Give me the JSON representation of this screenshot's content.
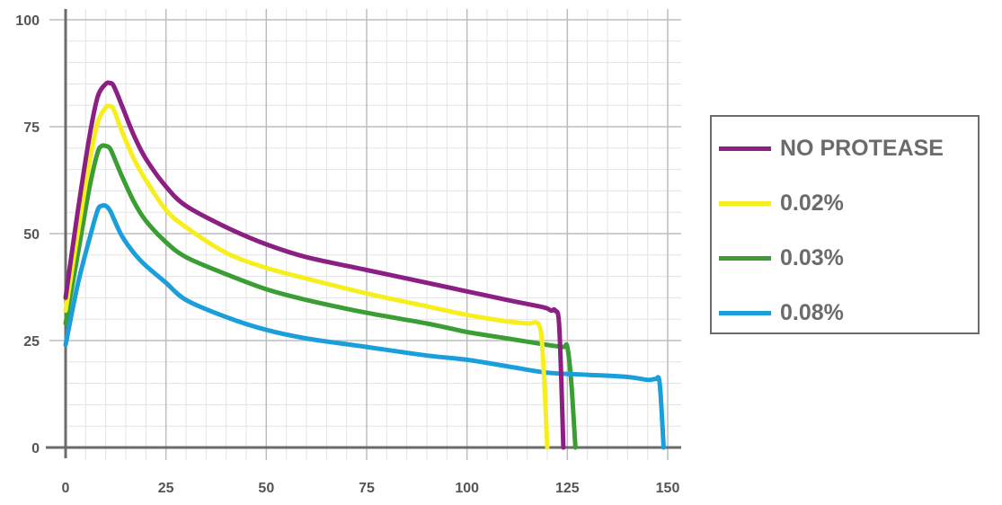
{
  "chart_data": {
    "type": "line",
    "title": "",
    "xlabel": "",
    "ylabel": "",
    "xlim": [
      0,
      150
    ],
    "ylim": [
      0,
      100
    ],
    "x_ticks": [
      "0",
      "25",
      "50",
      "75",
      "100",
      "125",
      "150"
    ],
    "y_ticks": [
      "0",
      "25",
      "50",
      "75",
      "100"
    ],
    "grid": true,
    "legend_position": "right",
    "series": [
      {
        "name": "NO PROTEASE",
        "color": "#8b1f84",
        "x": [
          0,
          3,
          6,
          8,
          10,
          11,
          12,
          14,
          17,
          20,
          25,
          30,
          40,
          50,
          60,
          75,
          90,
          100,
          110,
          118,
          120,
          121,
          122,
          123,
          124
        ],
        "y": [
          35,
          55,
          73,
          82,
          85,
          85.2,
          84.5,
          80,
          73,
          67.5,
          61,
          56.5,
          51.5,
          47.5,
          44.5,
          41.5,
          38.5,
          36.5,
          34.5,
          33,
          32.5,
          32,
          32,
          28,
          0
        ]
      },
      {
        "name": "0.02%",
        "color": "#f7ee1d",
        "x": [
          0,
          3,
          6,
          8,
          10,
          11,
          12,
          14,
          17,
          20,
          25,
          30,
          40,
          50,
          60,
          75,
          90,
          100,
          110,
          115,
          118,
          119,
          120
        ],
        "y": [
          32,
          50,
          67,
          76,
          79.5,
          79.8,
          79,
          74,
          67.5,
          62.5,
          55.5,
          51.5,
          45.5,
          42,
          39.5,
          36,
          33,
          31,
          29.5,
          29,
          28.5,
          20,
          0
        ]
      },
      {
        "name": "0.03%",
        "color": "#3b9e35",
        "x": [
          0,
          3,
          6,
          8,
          9,
          10,
          11,
          12,
          14,
          17,
          20,
          25,
          30,
          40,
          50,
          60,
          75,
          90,
          100,
          110,
          120,
          124,
          125,
          126,
          127
        ],
        "y": [
          29,
          45,
          61,
          69,
          70.5,
          70.5,
          70,
          68,
          63.5,
          57.5,
          53,
          48,
          44.5,
          40.5,
          37,
          34.5,
          31.5,
          29,
          27,
          25.5,
          24,
          23.5,
          23.5,
          15,
          0
        ]
      },
      {
        "name": "0.08%",
        "color": "#1a9fdb",
        "x": [
          0,
          3,
          6,
          8,
          9,
          10,
          11,
          12,
          14,
          17,
          20,
          25,
          30,
          40,
          50,
          60,
          75,
          90,
          100,
          110,
          120,
          130,
          140,
          145,
          147,
          148,
          149
        ],
        "y": [
          24,
          38,
          49,
          55.5,
          56.5,
          56.5,
          55.5,
          53.5,
          49.5,
          45.5,
          42.5,
          38.5,
          34.5,
          30.5,
          27.5,
          25.5,
          23.5,
          21.5,
          20.5,
          19,
          17.5,
          17,
          16.5,
          15.8,
          16,
          15,
          0
        ]
      }
    ]
  }
}
